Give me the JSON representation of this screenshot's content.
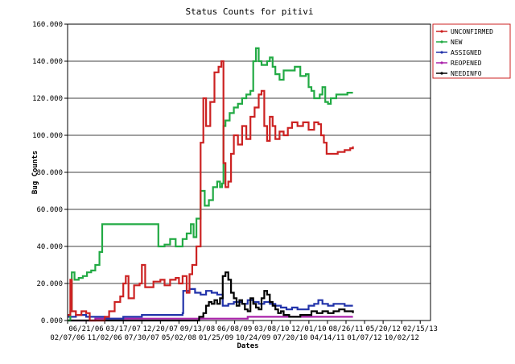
{
  "chart_data": {
    "type": "line",
    "title": "Status Counts for pitivi",
    "xlabel": "Dates",
    "ylabel": "Bug Counts",
    "ylim": [
      0,
      160
    ],
    "y_ticks": [
      "0.000",
      "20.000",
      "40.000",
      "60.000",
      "80.000",
      "100.000",
      "120.000",
      "140.000",
      "160.000"
    ],
    "x_ticks_upper": [
      "06/21/06",
      "03/17/07",
      "12/20/07",
      "09/13/08",
      "06/08/09",
      "03/08/10",
      "12/01/10",
      "08/26/11",
      "05/20/12",
      "02/15/13"
    ],
    "x_ticks_lower": [
      "02/07/06",
      "11/02/06",
      "07/30/07",
      "05/02/08",
      "01/25/09",
      "10/24/09",
      "07/20/10",
      "04/14/11",
      "01/07/12",
      "10/02/12"
    ],
    "x_tick_values": [
      0,
      134,
      268,
      402,
      536,
      670,
      804,
      938,
      1072,
      1206,
      1340,
      1474,
      1608,
      1742,
      1876,
      2010,
      2144,
      2278,
      2412,
      2546
    ],
    "xlim": [
      0,
      2620
    ],
    "grid": "horizontal",
    "legend_position": "top-right",
    "series": [
      {
        "name": "UNCONFIRMED",
        "color": "#cc2222",
        "points": [
          [
            0,
            3
          ],
          [
            20,
            22
          ],
          [
            30,
            5
          ],
          [
            60,
            3
          ],
          [
            100,
            5
          ],
          [
            134,
            4
          ],
          [
            160,
            0
          ],
          [
            220,
            0
          ],
          [
            268,
            2
          ],
          [
            300,
            5
          ],
          [
            340,
            10
          ],
          [
            380,
            13
          ],
          [
            402,
            20
          ],
          [
            420,
            24
          ],
          [
            440,
            12
          ],
          [
            480,
            19
          ],
          [
            520,
            20
          ],
          [
            536,
            30
          ],
          [
            560,
            18
          ],
          [
            620,
            21
          ],
          [
            670,
            22
          ],
          [
            700,
            19
          ],
          [
            740,
            22
          ],
          [
            780,
            23
          ],
          [
            804,
            20
          ],
          [
            830,
            24
          ],
          [
            860,
            15
          ],
          [
            880,
            25
          ],
          [
            900,
            30
          ],
          [
            930,
            40
          ],
          [
            960,
            96
          ],
          [
            980,
            120
          ],
          [
            1000,
            105
          ],
          [
            1030,
            118
          ],
          [
            1060,
            134
          ],
          [
            1090,
            137
          ],
          [
            1110,
            140
          ],
          [
            1125,
            85
          ],
          [
            1140,
            72
          ],
          [
            1160,
            75
          ],
          [
            1180,
            90
          ],
          [
            1200,
            100
          ],
          [
            1230,
            95
          ],
          [
            1260,
            105
          ],
          [
            1290,
            98
          ],
          [
            1320,
            110
          ],
          [
            1350,
            115
          ],
          [
            1380,
            122
          ],
          [
            1400,
            124
          ],
          [
            1420,
            105
          ],
          [
            1440,
            97
          ],
          [
            1460,
            110
          ],
          [
            1480,
            105
          ],
          [
            1500,
            98
          ],
          [
            1530,
            102
          ],
          [
            1560,
            100
          ],
          [
            1590,
            104
          ],
          [
            1620,
            107
          ],
          [
            1660,
            105
          ],
          [
            1700,
            107
          ],
          [
            1740,
            103
          ],
          [
            1780,
            107
          ],
          [
            1810,
            106
          ],
          [
            1830,
            100
          ],
          [
            1850,
            96
          ],
          [
            1870,
            90
          ],
          [
            1900,
            90
          ],
          [
            1950,
            91
          ],
          [
            2000,
            92
          ],
          [
            2040,
            93
          ],
          [
            2060,
            94
          ]
        ]
      },
      {
        "name": "NEW",
        "color": "#22aa44",
        "points": [
          [
            0,
            0
          ],
          [
            20,
            5
          ],
          [
            30,
            26
          ],
          [
            50,
            22
          ],
          [
            80,
            23
          ],
          [
            110,
            24
          ],
          [
            140,
            26
          ],
          [
            170,
            27
          ],
          [
            200,
            30
          ],
          [
            230,
            37
          ],
          [
            250,
            52
          ],
          [
            300,
            52
          ],
          [
            360,
            52
          ],
          [
            420,
            52
          ],
          [
            480,
            52
          ],
          [
            540,
            52
          ],
          [
            600,
            52
          ],
          [
            650,
            52
          ],
          [
            655,
            40
          ],
          [
            700,
            41
          ],
          [
            740,
            44
          ],
          [
            780,
            40
          ],
          [
            804,
            40
          ],
          [
            830,
            44
          ],
          [
            860,
            47
          ],
          [
            890,
            52
          ],
          [
            910,
            45
          ],
          [
            930,
            55
          ],
          [
            960,
            70
          ],
          [
            990,
            62
          ],
          [
            1020,
            65
          ],
          [
            1050,
            72
          ],
          [
            1080,
            75
          ],
          [
            1100,
            72
          ],
          [
            1115,
            74
          ],
          [
            1125,
            105
          ],
          [
            1140,
            108
          ],
          [
            1170,
            112
          ],
          [
            1200,
            115
          ],
          [
            1230,
            117
          ],
          [
            1260,
            120
          ],
          [
            1290,
            122
          ],
          [
            1320,
            124
          ],
          [
            1340,
            140
          ],
          [
            1360,
            147
          ],
          [
            1380,
            140
          ],
          [
            1400,
            138
          ],
          [
            1440,
            140
          ],
          [
            1460,
            142
          ],
          [
            1480,
            137
          ],
          [
            1500,
            133
          ],
          [
            1530,
            130
          ],
          [
            1560,
            135
          ],
          [
            1600,
            135
          ],
          [
            1640,
            137
          ],
          [
            1680,
            132
          ],
          [
            1720,
            133
          ],
          [
            1740,
            126
          ],
          [
            1760,
            124
          ],
          [
            1780,
            120
          ],
          [
            1800,
            120
          ],
          [
            1820,
            122
          ],
          [
            1840,
            126
          ],
          [
            1860,
            118
          ],
          [
            1880,
            117
          ],
          [
            1900,
            120
          ],
          [
            1940,
            122
          ],
          [
            1980,
            122
          ],
          [
            2020,
            123
          ],
          [
            2060,
            123
          ]
        ]
      },
      {
        "name": "ASSIGNED",
        "color": "#2233aa",
        "points": [
          [
            0,
            2
          ],
          [
            60,
            3
          ],
          [
            134,
            2
          ],
          [
            268,
            1
          ],
          [
            402,
            2
          ],
          [
            536,
            3
          ],
          [
            670,
            3
          ],
          [
            804,
            3
          ],
          [
            830,
            4
          ],
          [
            835,
            16
          ],
          [
            880,
            17
          ],
          [
            920,
            15
          ],
          [
            960,
            14
          ],
          [
            1000,
            16
          ],
          [
            1040,
            15
          ],
          [
            1080,
            14
          ],
          [
            1120,
            8
          ],
          [
            1160,
            9
          ],
          [
            1200,
            10
          ],
          [
            1260,
            9
          ],
          [
            1300,
            11
          ],
          [
            1340,
            10
          ],
          [
            1380,
            9
          ],
          [
            1420,
            10
          ],
          [
            1460,
            9
          ],
          [
            1500,
            8
          ],
          [
            1540,
            7
          ],
          [
            1580,
            6
          ],
          [
            1620,
            7
          ],
          [
            1660,
            6
          ],
          [
            1700,
            6
          ],
          [
            1740,
            8
          ],
          [
            1780,
            9
          ],
          [
            1810,
            11
          ],
          [
            1840,
            9
          ],
          [
            1880,
            8
          ],
          [
            1920,
            9
          ],
          [
            1960,
            9
          ],
          [
            2000,
            8
          ],
          [
            2060,
            8
          ]
        ]
      },
      {
        "name": "REOPENED",
        "color": "#aa22aa",
        "points": [
          [
            0,
            0
          ],
          [
            200,
            1
          ],
          [
            400,
            1
          ],
          [
            600,
            1
          ],
          [
            800,
            1
          ],
          [
            900,
            1
          ],
          [
            1000,
            1
          ],
          [
            1100,
            1
          ],
          [
            1200,
            1
          ],
          [
            1300,
            2
          ],
          [
            1400,
            2
          ],
          [
            1500,
            2
          ],
          [
            1600,
            2
          ],
          [
            1700,
            2
          ],
          [
            1800,
            2
          ],
          [
            1900,
            2
          ],
          [
            2060,
            2
          ]
        ]
      },
      {
        "name": "NEEDINFO",
        "color": "#000000",
        "points": [
          [
            0,
            0
          ],
          [
            200,
            0
          ],
          [
            400,
            0
          ],
          [
            600,
            0
          ],
          [
            800,
            0
          ],
          [
            900,
            0
          ],
          [
            950,
            2
          ],
          [
            980,
            4
          ],
          [
            1000,
            8
          ],
          [
            1020,
            10
          ],
          [
            1040,
            9
          ],
          [
            1060,
            11
          ],
          [
            1080,
            9
          ],
          [
            1100,
            12
          ],
          [
            1120,
            24
          ],
          [
            1140,
            26
          ],
          [
            1160,
            22
          ],
          [
            1180,
            15
          ],
          [
            1200,
            12
          ],
          [
            1220,
            8
          ],
          [
            1240,
            11
          ],
          [
            1260,
            9
          ],
          [
            1280,
            6
          ],
          [
            1300,
            5
          ],
          [
            1320,
            12
          ],
          [
            1340,
            9
          ],
          [
            1360,
            7
          ],
          [
            1380,
            6
          ],
          [
            1400,
            12
          ],
          [
            1420,
            16
          ],
          [
            1440,
            14
          ],
          [
            1460,
            10
          ],
          [
            1480,
            8
          ],
          [
            1500,
            6
          ],
          [
            1520,
            4
          ],
          [
            1540,
            5
          ],
          [
            1560,
            3
          ],
          [
            1600,
            2
          ],
          [
            1640,
            2
          ],
          [
            1680,
            3
          ],
          [
            1720,
            3
          ],
          [
            1760,
            5
          ],
          [
            1800,
            4
          ],
          [
            1840,
            5
          ],
          [
            1880,
            4
          ],
          [
            1920,
            5
          ],
          [
            1960,
            6
          ],
          [
            2000,
            5
          ],
          [
            2040,
            5
          ],
          [
            2060,
            4
          ]
        ]
      }
    ]
  }
}
